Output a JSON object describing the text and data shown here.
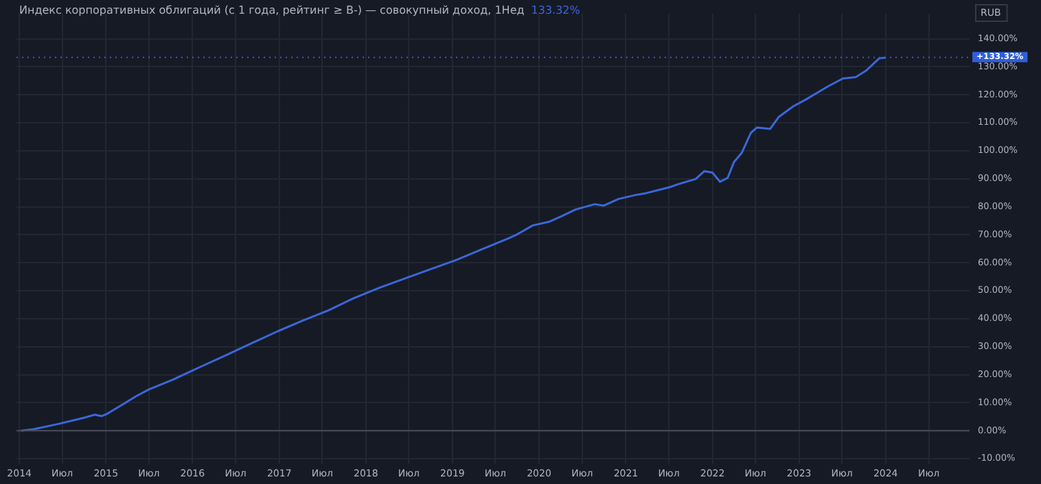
{
  "chart_data": {
    "type": "line",
    "title": "Индекс корпоративных облигаций (с 1 года, рейтинг ≥ B-) — совокупный доход, 1Нед",
    "annotations": [
      "133.32%",
      "RUB"
    ],
    "x": [
      "2014-01-08",
      "2014-02-28",
      "2014-06-15",
      "2014-10-05",
      "2014-11-15",
      "2014-12-15",
      "2015-01-08",
      "2015-03-15",
      "2015-05-08",
      "2015-07-01",
      "2015-10-15",
      "2016-02-01",
      "2016-05-20",
      "2016-09-05",
      "2016-12-25",
      "2017-04-10",
      "2017-07-28",
      "2017-11-10",
      "2018-02-28",
      "2018-06-15",
      "2018-10-01",
      "2019-01-18",
      "2019-05-05",
      "2019-08-22",
      "2019-09-28",
      "2019-12-05",
      "2020-02-15",
      "2020-04-05",
      "2020-06-03",
      "2020-08-22",
      "2020-09-30",
      "2020-12-02",
      "2021-02-12",
      "2021-03-20",
      "2021-07-05",
      "2021-08-08",
      "2021-10-22",
      "2021-11-28",
      "2022-01-01",
      "2022-02-02",
      "2022-03-06",
      "2022-04-02",
      "2022-05-05",
      "2022-06-12",
      "2022-07-08",
      "2022-09-01",
      "2022-10-08",
      "2022-12-08",
      "2023-01-30",
      "2023-05-03",
      "2023-07-05",
      "2023-08-28",
      "2023-10-12",
      "2023-12-05",
      "2024-01-01"
    ],
    "series": [
      {
        "color": "#3b68d9",
        "values": [
          0,
          0.5,
          2.4,
          4.7,
          5.7,
          5.2,
          6.1,
          9.5,
          12.3,
          14.7,
          18.4,
          22.7,
          26.9,
          31.2,
          35.5,
          39.3,
          43.0,
          47.3,
          51.1,
          54.4,
          57.7,
          61.0,
          64.8,
          68.6,
          70.0,
          73.3,
          74.7,
          76.6,
          79.0,
          80.9,
          80.4,
          82.8,
          84.2,
          84.7,
          87.0,
          88.0,
          89.9,
          92.7,
          92.2,
          88.9,
          90.3,
          96.0,
          99.3,
          106.4,
          108.3,
          107.8,
          112.1,
          115.9,
          118.3,
          123.0,
          125.8,
          126.3,
          128.7,
          133.0,
          133.3
        ]
      }
    ],
    "xlim": [
      "2013-12-20",
      "2024-12-20"
    ],
    "xticks": [
      {
        "value": "2014-01-01",
        "label": "2014"
      },
      {
        "value": "2014-07-01",
        "label": "Июл"
      },
      {
        "value": "2015-01-01",
        "label": "2015"
      },
      {
        "value": "2015-07-01",
        "label": "Июл"
      },
      {
        "value": "2016-01-01",
        "label": "2016"
      },
      {
        "value": "2016-07-01",
        "label": "Июл"
      },
      {
        "value": "2017-01-01",
        "label": "2017"
      },
      {
        "value": "2017-07-01",
        "label": "Июл"
      },
      {
        "value": "2018-01-01",
        "label": "2018"
      },
      {
        "value": "2018-07-01",
        "label": "Июл"
      },
      {
        "value": "2019-01-01",
        "label": "2019"
      },
      {
        "value": "2019-07-01",
        "label": "Июл"
      },
      {
        "value": "2020-01-01",
        "label": "2020"
      },
      {
        "value": "2020-07-01",
        "label": "Июл"
      },
      {
        "value": "2021-01-01",
        "label": "2021"
      },
      {
        "value": "2021-07-01",
        "label": "Июл"
      },
      {
        "value": "2022-01-01",
        "label": "2022"
      },
      {
        "value": "2022-07-01",
        "label": "Июл"
      },
      {
        "value": "2023-01-01",
        "label": "2023"
      },
      {
        "value": "2023-07-01",
        "label": "Июл"
      },
      {
        "value": "2024-01-01",
        "label": "2024"
      },
      {
        "value": "2024-07-01",
        "label": "Июл"
      }
    ],
    "ylim": [
      -12,
      149
    ],
    "yticks": [
      {
        "value": -10,
        "label": "-10.00%"
      },
      {
        "value": 0,
        "label": "0.00%"
      },
      {
        "value": 10,
        "label": "10.00%"
      },
      {
        "value": 20,
        "label": "20.00%"
      },
      {
        "value": 30,
        "label": "30.00%"
      },
      {
        "value": 40,
        "label": "40.00%"
      },
      {
        "value": 50,
        "label": "50.00%"
      },
      {
        "value": 60,
        "label": "60.00%"
      },
      {
        "value": 70,
        "label": "70.00%"
      },
      {
        "value": 80,
        "label": "80.00%"
      },
      {
        "value": 90,
        "label": "90.00%"
      },
      {
        "value": 100,
        "label": "100.00%"
      },
      {
        "value": 110,
        "label": "110.00%"
      },
      {
        "value": 120,
        "label": "120.00%"
      },
      {
        "value": 130,
        "label": "130.00%"
      },
      {
        "value": 140,
        "label": "140.00%"
      }
    ],
    "ref_lines": [
      {
        "axis": "y",
        "value": 0,
        "color": "#4a4e5a",
        "line_style": "solid"
      },
      {
        "axis": "y",
        "value": 133.32,
        "label": "+133.32%",
        "color": "#2f5fd8",
        "line_style": "dotted"
      }
    ],
    "grid": true,
    "legend": false,
    "marker": "none",
    "line_style": "solid"
  }
}
